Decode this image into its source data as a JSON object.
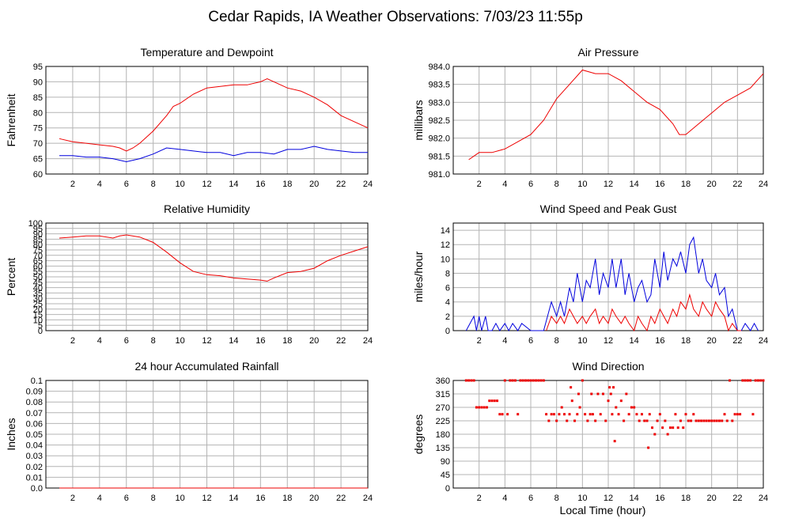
{
  "page": {
    "title": "Cedar Rapids, IA Weather Observations: 7/03/23 11:55p",
    "xlabel": "Local Time (hour)"
  },
  "colors": {
    "red": "#ee0000",
    "blue": "#0000dd",
    "grid": "#b4b4b4"
  },
  "chart_data": [
    {
      "id": "temp",
      "type": "line",
      "title": "Temperature and Dewpoint",
      "ylabel": "Fahrenheit",
      "xlim": [
        0,
        24
      ],
      "ylim": [
        60,
        95
      ],
      "xticks": [
        2,
        4,
        6,
        8,
        10,
        12,
        14,
        16,
        18,
        20,
        22,
        24
      ],
      "yticks": [
        60,
        65,
        70,
        75,
        80,
        85,
        90,
        95
      ],
      "series": [
        {
          "color": "red",
          "x": [
            1,
            2,
            3,
            4,
            5,
            5.5,
            6,
            6.5,
            7,
            8,
            9,
            9.5,
            10,
            11,
            12,
            13,
            14,
            15,
            16,
            16.5,
            17,
            18,
            19,
            20,
            21,
            22,
            23,
            24
          ],
          "y": [
            71.5,
            70.5,
            70,
            69.5,
            69,
            68.5,
            67.5,
            68.5,
            70,
            74,
            79,
            82,
            83,
            86,
            88,
            88.5,
            89,
            89,
            90,
            91,
            90,
            88,
            87,
            85,
            82.5,
            79,
            77,
            75
          ]
        },
        {
          "color": "blue",
          "x": [
            1,
            2,
            3,
            4,
            5,
            6,
            7,
            8,
            9,
            10,
            11,
            12,
            13,
            14,
            15,
            16,
            17,
            18,
            19,
            20,
            21,
            22,
            23,
            24
          ],
          "y": [
            66,
            66,
            65.5,
            65.5,
            65,
            64,
            65,
            66.5,
            68.5,
            68,
            67.5,
            67,
            67,
            66,
            67,
            67,
            66.5,
            68,
            68,
            69,
            68,
            67.5,
            67,
            67
          ]
        }
      ]
    },
    {
      "id": "pressure",
      "type": "line",
      "title": "Air Pressure",
      "ylabel": "millibars",
      "xlim": [
        0,
        24
      ],
      "ylim": [
        981.0,
        984.0
      ],
      "xticks": [
        2,
        4,
        6,
        8,
        10,
        12,
        14,
        16,
        18,
        20,
        22,
        24
      ],
      "yticks": [
        "981.0",
        "981.5",
        "982.0",
        "982.5",
        "983.0",
        "983.5",
        "984.0"
      ],
      "series": [
        {
          "color": "red",
          "x": [
            1.2,
            2,
            3,
            4,
            5,
            6,
            7,
            8,
            9,
            10,
            11,
            12,
            13,
            14,
            15,
            16,
            17,
            17.5,
            18,
            19,
            20,
            21,
            22,
            23,
            24
          ],
          "y": [
            981.4,
            981.6,
            981.6,
            981.7,
            981.9,
            982.1,
            982.5,
            983.1,
            983.5,
            983.9,
            983.8,
            983.8,
            983.6,
            983.3,
            983.0,
            982.8,
            982.4,
            982.1,
            982.1,
            982.4,
            982.7,
            983.0,
            983.2,
            983.4,
            983.8
          ]
        }
      ]
    },
    {
      "id": "humidity",
      "type": "line",
      "title": "Relative Humidity",
      "ylabel": "Percent",
      "xlim": [
        0,
        24
      ],
      "ylim": [
        0,
        100
      ],
      "xticks": [
        2,
        4,
        6,
        8,
        10,
        12,
        14,
        16,
        18,
        20,
        22,
        24
      ],
      "yticks": [
        0,
        5,
        10,
        15,
        20,
        25,
        30,
        35,
        40,
        45,
        50,
        55,
        60,
        65,
        70,
        75,
        80,
        85,
        90,
        95,
        100
      ],
      "series": [
        {
          "color": "red",
          "x": [
            1,
            2,
            3,
            4,
            5,
            5.5,
            6,
            7,
            8,
            9,
            10,
            11,
            12,
            13,
            14,
            15,
            16,
            16.5,
            17,
            18,
            19,
            20,
            21,
            22,
            23,
            24
          ],
          "y": [
            86,
            87,
            88,
            88,
            86,
            88,
            89,
            87,
            82,
            73,
            63,
            55,
            52,
            51,
            49,
            48,
            47,
            46,
            49,
            54,
            55,
            58,
            65,
            70,
            74,
            78
          ]
        }
      ]
    },
    {
      "id": "wind",
      "type": "line",
      "title": "Wind Speed and Peak Gust",
      "ylabel": "miles/hour",
      "xlim": [
        0,
        24
      ],
      "ylim": [
        0,
        15
      ],
      "xticks": [
        2,
        4,
        6,
        8,
        10,
        12,
        14,
        16,
        18,
        20,
        22,
        24
      ],
      "yticks": [
        0,
        2,
        4,
        6,
        8,
        10,
        12,
        14
      ],
      "series": [
        {
          "color": "blue",
          "x": [
            1,
            1.6,
            1.8,
            2,
            2.2,
            2.5,
            2.7,
            3,
            3.3,
            3.6,
            4,
            4.3,
            4.6,
            5,
            5.3,
            6,
            6.5,
            7,
            7.3,
            7.6,
            8,
            8.3,
            8.6,
            9,
            9.3,
            9.6,
            10,
            10.3,
            10.6,
            11,
            11.3,
            11.6,
            12,
            12.3,
            12.6,
            13,
            13.3,
            13.6,
            14,
            14.3,
            14.6,
            15,
            15.3,
            15.6,
            16,
            16.3,
            16.6,
            17,
            17.3,
            17.6,
            18,
            18.3,
            18.6,
            19,
            19.3,
            19.6,
            20,
            20.3,
            20.6,
            21,
            21.3,
            21.6,
            22,
            22.3,
            22.6,
            23,
            23.3,
            23.6
          ],
          "y": [
            0,
            2,
            0,
            2,
            0,
            2,
            0,
            0,
            1,
            0,
            1,
            0,
            1,
            0,
            1,
            0,
            0,
            0,
            2,
            4,
            2,
            4,
            2,
            6,
            4,
            8,
            4,
            7,
            6,
            10,
            5,
            8,
            6,
            10,
            6,
            10,
            5,
            8,
            4,
            6,
            7,
            4,
            5,
            10,
            6,
            11,
            7,
            10,
            9,
            11,
            8,
            12,
            13,
            8,
            10,
            7,
            6,
            8,
            5,
            6,
            2,
            3,
            0,
            0,
            1,
            0,
            1,
            0
          ]
        },
        {
          "color": "red",
          "x": [
            7.2,
            7.6,
            8,
            8.3,
            8.6,
            9,
            9.3,
            9.6,
            10,
            10.3,
            10.6,
            11,
            11.3,
            11.6,
            12,
            12.3,
            12.6,
            13,
            13.3,
            13.6,
            14,
            14.3,
            14.6,
            15,
            15.3,
            15.6,
            16,
            16.3,
            16.6,
            17,
            17.3,
            17.6,
            18,
            18.3,
            18.6,
            19,
            19.3,
            19.6,
            20,
            20.3,
            20.6,
            21,
            21.3,
            21.6,
            22,
            22.3
          ],
          "y": [
            0,
            2,
            1,
            2,
            1,
            3,
            2,
            1,
            2,
            1,
            2,
            3,
            1,
            2,
            1,
            3,
            2,
            1,
            2,
            1,
            0,
            2,
            1,
            0,
            2,
            1,
            3,
            2,
            1,
            3,
            2,
            4,
            3,
            5,
            3,
            2,
            4,
            3,
            2,
            4,
            3,
            2,
            0,
            1,
            0,
            0
          ]
        }
      ]
    },
    {
      "id": "rain",
      "type": "line",
      "title": "24 hour Accumulated Rainfall",
      "ylabel": "Inches",
      "xlim": [
        0,
        24
      ],
      "ylim": [
        0,
        0.1
      ],
      "xticks": [
        2,
        4,
        6,
        8,
        10,
        12,
        14,
        16,
        18,
        20,
        22,
        24
      ],
      "yticks": [
        "0.0",
        "0.01",
        "0.02",
        "0.03",
        "0.04",
        "0.05",
        "0.06",
        "0.07",
        "0.08",
        "0.09",
        "0.1"
      ],
      "series": [
        {
          "color": "red",
          "x": [
            1,
            24
          ],
          "y": [
            0,
            0
          ]
        }
      ]
    },
    {
      "id": "direction",
      "type": "scatter",
      "title": "Wind Direction",
      "ylabel": "degrees",
      "xlim": [
        0,
        24
      ],
      "ylim": [
        0,
        360
      ],
      "xticks": [
        2,
        4,
        6,
        8,
        10,
        12,
        14,
        16,
        18,
        20,
        22,
        24
      ],
      "yticks": [
        0,
        45,
        90,
        135,
        180,
        225,
        270,
        315,
        360
      ],
      "series": [
        {
          "color": "red",
          "points": [
            [
              1,
              360
            ],
            [
              1.2,
              360
            ],
            [
              1.4,
              360
            ],
            [
              1.6,
              360
            ],
            [
              1.8,
              270
            ],
            [
              2,
              270
            ],
            [
              2.2,
              270
            ],
            [
              2.4,
              270
            ],
            [
              2.6,
              270
            ],
            [
              2.8,
              292
            ],
            [
              3,
              292
            ],
            [
              3.2,
              292
            ],
            [
              3.4,
              292
            ],
            [
              3.6,
              247
            ],
            [
              3.8,
              247
            ],
            [
              4,
              360
            ],
            [
              4.2,
              247
            ],
            [
              4.4,
              360
            ],
            [
              4.6,
              360
            ],
            [
              4.8,
              360
            ],
            [
              5,
              247
            ],
            [
              5.2,
              360
            ],
            [
              5.4,
              360
            ],
            [
              5.6,
              360
            ],
            [
              5.8,
              360
            ],
            [
              6,
              360
            ],
            [
              6.2,
              360
            ],
            [
              6.4,
              360
            ],
            [
              6.6,
              360
            ],
            [
              6.8,
              360
            ],
            [
              7,
              360
            ],
            [
              7.2,
              247
            ],
            [
              7.4,
              225
            ],
            [
              7.6,
              247
            ],
            [
              7.8,
              247
            ],
            [
              8,
              225
            ],
            [
              8.2,
              247
            ],
            [
              8.4,
              270
            ],
            [
              8.6,
              247
            ],
            [
              8.8,
              225
            ],
            [
              9,
              247
            ],
            [
              9.1,
              337
            ],
            [
              9.2,
              292
            ],
            [
              9.4,
              225
            ],
            [
              9.6,
              247
            ],
            [
              9.7,
              315
            ],
            [
              9.8,
              270
            ],
            [
              10,
              360
            ],
            [
              10.2,
              247
            ],
            [
              10.4,
              225
            ],
            [
              10.6,
              247
            ],
            [
              10.7,
              315
            ],
            [
              10.8,
              247
            ],
            [
              11,
              225
            ],
            [
              11.2,
              315
            ],
            [
              11.4,
              247
            ],
            [
              11.6,
              315
            ],
            [
              11.8,
              225
            ],
            [
              12,
              292
            ],
            [
              12.1,
              337
            ],
            [
              12.2,
              315
            ],
            [
              12.3,
              247
            ],
            [
              12.4,
              337
            ],
            [
              12.5,
              157
            ],
            [
              12.6,
              270
            ],
            [
              12.8,
              247
            ],
            [
              13,
              292
            ],
            [
              13.2,
              225
            ],
            [
              13.4,
              315
            ],
            [
              13.6,
              247
            ],
            [
              13.8,
              270
            ],
            [
              14,
              270
            ],
            [
              14.2,
              247
            ],
            [
              14.4,
              225
            ],
            [
              14.6,
              247
            ],
            [
              14.8,
              225
            ],
            [
              15,
              225
            ],
            [
              15.1,
              135
            ],
            [
              15.2,
              247
            ],
            [
              15.4,
              202
            ],
            [
              15.6,
              180
            ],
            [
              15.8,
              225
            ],
            [
              16,
              247
            ],
            [
              16.2,
              202
            ],
            [
              16.4,
              225
            ],
            [
              16.6,
              180
            ],
            [
              16.8,
              202
            ],
            [
              17,
              202
            ],
            [
              17.2,
              247
            ],
            [
              17.4,
              202
            ],
            [
              17.6,
              225
            ],
            [
              17.8,
              202
            ],
            [
              18,
              247
            ],
            [
              18.2,
              225
            ],
            [
              18.4,
              225
            ],
            [
              18.6,
              247
            ],
            [
              18.8,
              225
            ],
            [
              19,
              225
            ],
            [
              19.2,
              225
            ],
            [
              19.4,
              225
            ],
            [
              19.6,
              225
            ],
            [
              19.8,
              225
            ],
            [
              20,
              225
            ],
            [
              20.2,
              225
            ],
            [
              20.4,
              225
            ],
            [
              20.6,
              225
            ],
            [
              20.8,
              225
            ],
            [
              21,
              247
            ],
            [
              21.2,
              225
            ],
            [
              21.4,
              360
            ],
            [
              21.6,
              225
            ],
            [
              21.8,
              247
            ],
            [
              22,
              247
            ],
            [
              22.2,
              247
            ],
            [
              22.4,
              360
            ],
            [
              22.6,
              360
            ],
            [
              22.8,
              360
            ],
            [
              23,
              360
            ],
            [
              23.2,
              247
            ],
            [
              23.4,
              360
            ],
            [
              23.6,
              360
            ],
            [
              23.8,
              360
            ],
            [
              24,
              360
            ]
          ]
        }
      ]
    }
  ]
}
